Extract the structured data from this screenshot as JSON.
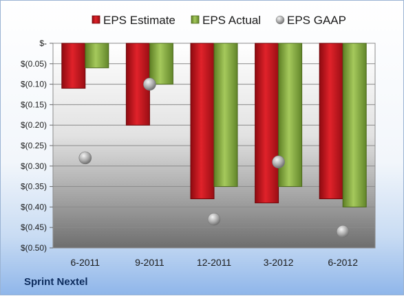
{
  "chart_data": {
    "type": "bar",
    "categories": [
      "6-2011",
      "9-2011",
      "12-2011",
      "3-2012",
      "6-2012"
    ],
    "series": [
      {
        "name": "EPS Estimate",
        "kind": "bar",
        "color": "#c0141c",
        "values": [
          -0.11,
          -0.2,
          -0.38,
          -0.39,
          -0.38
        ]
      },
      {
        "name": "EPS Actual",
        "kind": "bar",
        "color": "#7fa33a",
        "values": [
          -0.06,
          -0.1,
          -0.35,
          -0.35,
          -0.4
        ]
      },
      {
        "name": "EPS GAAP",
        "kind": "point",
        "color": "#a8a8a8",
        "values": [
          -0.28,
          -0.1,
          -0.43,
          -0.29,
          -0.46
        ]
      }
    ],
    "ylim": [
      -0.5,
      0
    ],
    "yticks": [
      0,
      -0.05,
      -0.1,
      -0.15,
      -0.2,
      -0.25,
      -0.3,
      -0.35,
      -0.4,
      -0.45,
      -0.5
    ],
    "ytick_labels": [
      "$-",
      "$(0.05)",
      "$(0.10)",
      "$(0.15)",
      "$(0.20)",
      "$(0.25)",
      "$(0.30)",
      "$(0.35)",
      "$(0.40)",
      "$(0.45)",
      "$(0.50)"
    ],
    "legend_position": "top",
    "grid": true
  },
  "footer": {
    "company": "Sprint Nextel"
  }
}
